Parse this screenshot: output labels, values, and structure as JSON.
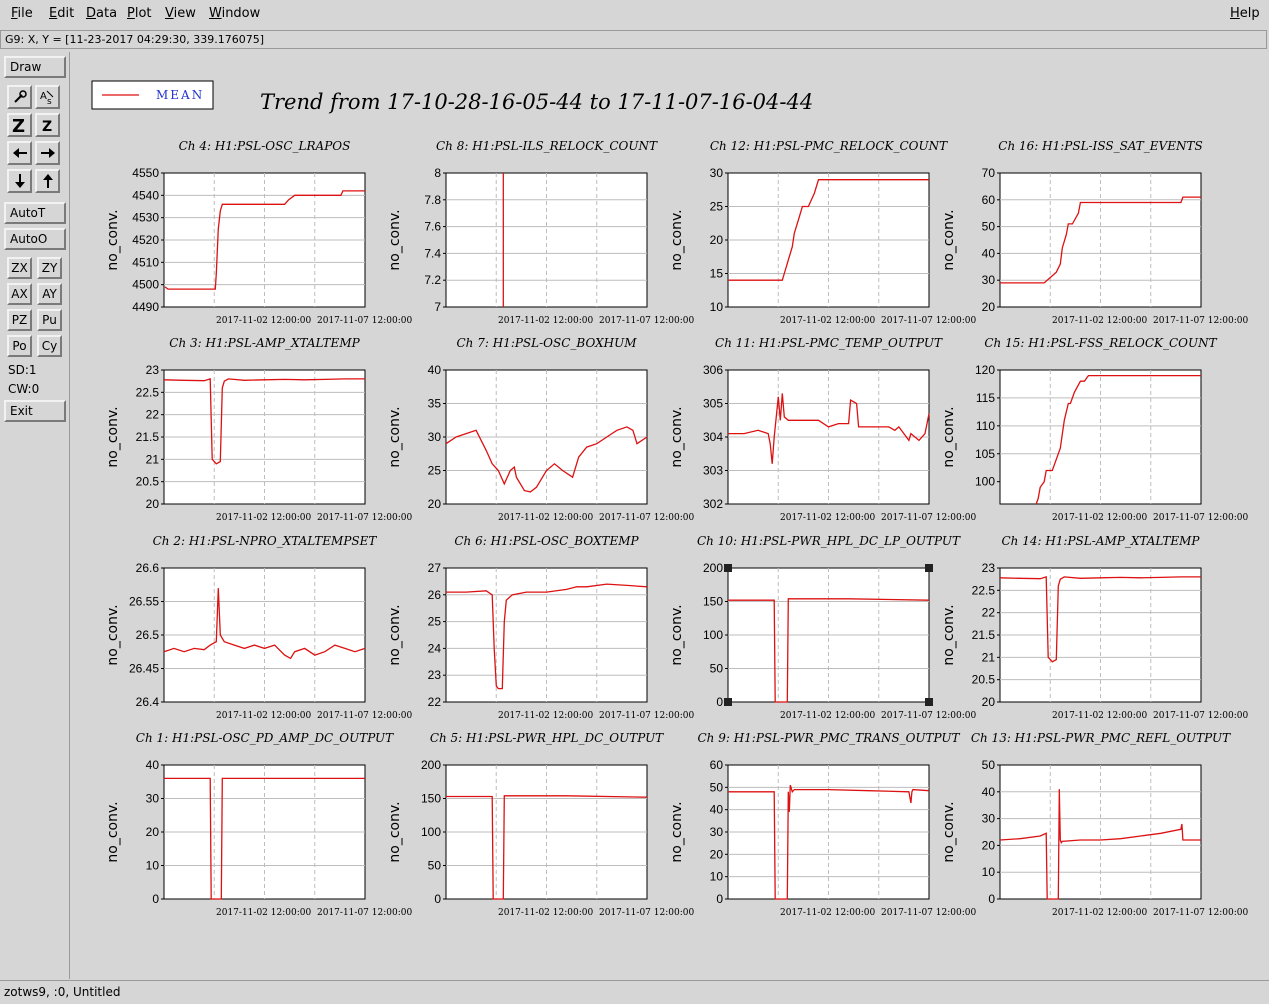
{
  "menubar": {
    "items": [
      {
        "first": "F",
        "rest": "ile"
      },
      {
        "first": "E",
        "rest": "dit"
      },
      {
        "first": "D",
        "rest": "ata"
      },
      {
        "first": "P",
        "rest": "lot"
      },
      {
        "first": "V",
        "rest": "iew"
      },
      {
        "first": "W",
        "rest": "indow"
      }
    ],
    "help": {
      "first": "H",
      "rest": "elp"
    }
  },
  "coordinate_readout": "G9: X, Y = [11-23-2017 04:29:30, 339.176075]",
  "toolbar": {
    "draw": "Draw",
    "icons": [
      "wrench-icon",
      "text-size-icon",
      "zoom-z-icon",
      "zoom-z-small-icon",
      "arrow-left-icon",
      "arrow-right-icon",
      "arrow-down-icon",
      "arrow-up-icon"
    ],
    "autot": "AutoT",
    "autoo": "AutoO",
    "pairs": [
      [
        "ZX",
        "ZY"
      ],
      [
        "AX",
        "AY"
      ],
      [
        "PZ",
        "Pu"
      ],
      [
        "Po",
        "Cy"
      ]
    ],
    "sd": "SD:1",
    "cw": "CW:0",
    "exit": "Exit"
  },
  "status": "zotws9, :0, Untitled",
  "legend": {
    "label": "MEAN",
    "color": "#dd1111"
  },
  "main_title": "Trend from 17-10-28-16-05-44 to 17-11-07-16-04-44",
  "colors": {
    "trace": "#dd1111",
    "grid": "#bdbdbd",
    "plot_bg": "#ffffff"
  },
  "chart_data": [
    {
      "type": "line",
      "title": "Ch 4: H1:PSL-OSC_LRAPOS",
      "ylabel": "no_conv.",
      "yticks": [
        "4490",
        "4500",
        "4510",
        "4520",
        "4530",
        "4540",
        "4550"
      ],
      "ylim": [
        4490,
        4550
      ],
      "xticks": [
        "2017-11-02 12:00:00",
        "2017-11-07 12:00:00"
      ],
      "xlim": [
        0,
        10
      ],
      "series": [
        {
          "x": [
            0.05,
            0.2,
            0.4,
            0.6,
            2.55,
            2.6,
            2.7,
            2.8,
            2.9,
            3.0,
            4.0,
            5.0,
            6.0,
            6.2,
            6.5,
            7.5,
            8.8,
            8.9,
            10
          ],
          "y": [
            4499,
            4498,
            4498,
            4498,
            4498,
            4505,
            4525,
            4533,
            4536,
            4536,
            4536,
            4536,
            4536,
            4538,
            4540,
            4540,
            4540,
            4542,
            4542
          ]
        }
      ]
    },
    {
      "type": "line",
      "title": "Ch 8: H1:PSL-ILS_RELOCK_COUNT",
      "ylabel": "no_conv.",
      "yticks": [
        "7",
        "7.2",
        "7.4",
        "7.6",
        "7.8",
        "8"
      ],
      "ylim": [
        7,
        8
      ],
      "xticks": [
        "2017-11-02 12:00:00",
        "2017-11-07 12:00:00"
      ],
      "xlim": [
        0,
        10
      ],
      "series": [
        {
          "x": [
            2.85,
            2.85
          ],
          "y": [
            7,
            8
          ]
        }
      ]
    },
    {
      "type": "line",
      "title": "Ch 12: H1:PSL-PMC_RELOCK_COUNT",
      "ylabel": "no_conv.",
      "yticks": [
        "10",
        "15",
        "20",
        "25",
        "30"
      ],
      "ylim": [
        10,
        30
      ],
      "xticks": [
        "2017-11-02 12:00:00",
        "2017-11-07 12:00:00"
      ],
      "xlim": [
        0,
        10
      ],
      "series": [
        {
          "x": [
            0,
            2.7,
            2.8,
            3.0,
            3.2,
            3.3,
            3.5,
            3.7,
            4.0,
            4.3,
            4.5,
            5.0,
            10
          ],
          "y": [
            14,
            14,
            15,
            17,
            19,
            21,
            23,
            25,
            25,
            27,
            29,
            29,
            29
          ]
        }
      ]
    },
    {
      "type": "line",
      "title": "Ch 16: H1:PSL-ISS_SAT_EVENTS",
      "ylabel": "no_conv.",
      "yticks": [
        "20",
        "30",
        "40",
        "50",
        "60",
        "70"
      ],
      "ylim": [
        20,
        70
      ],
      "xticks": [
        "2017-11-02 12:00:00",
        "2017-11-07 12:00:00"
      ],
      "xlim": [
        0,
        10
      ],
      "series": [
        {
          "x": [
            0,
            2.2,
            2.5,
            2.8,
            3.0,
            3.1,
            3.3,
            3.4,
            3.6,
            3.9,
            4.0,
            4.2,
            9.0,
            9.1,
            10
          ],
          "y": [
            29,
            29,
            31,
            33,
            36,
            42,
            47,
            51,
            51,
            55,
            59,
            59,
            59,
            61,
            61
          ]
        }
      ]
    },
    {
      "type": "line",
      "title": "Ch 3: H1:PSL-AMP_XTALTEMP",
      "ylabel": "no_conv.",
      "yticks": [
        "20",
        "20.5",
        "21",
        "21.5",
        "22",
        "22.5",
        "23"
      ],
      "ylim": [
        20,
        23
      ],
      "xticks": [
        "2017-11-02 12:00:00",
        "2017-11-07 12:00:00"
      ],
      "xlim": [
        0,
        10
      ],
      "series": [
        {
          "x": [
            0,
            1.0,
            2.0,
            2.3,
            2.4,
            2.5,
            2.6,
            2.8,
            2.9,
            3.0,
            3.2,
            4.0,
            5.0,
            6.0,
            7.0,
            8.0,
            9.0,
            10.0
          ],
          "y": [
            22.78,
            22.77,
            22.76,
            22.8,
            21.0,
            20.95,
            20.9,
            20.95,
            22.6,
            22.75,
            22.8,
            22.77,
            22.78,
            22.79,
            22.78,
            22.79,
            22.8,
            22.8
          ]
        }
      ]
    },
    {
      "type": "line",
      "title": "Ch 7: H1:PSL-OSC_BOXHUM",
      "ylabel": "no_conv.",
      "yticks": [
        "20",
        "25",
        "30",
        "35",
        "40"
      ],
      "ylim": [
        20,
        40
      ],
      "xticks": [
        "2017-11-02 12:00:00",
        "2017-11-07 12:00:00"
      ],
      "xlim": [
        0,
        10
      ],
      "series": [
        {
          "x": [
            0,
            0.5,
            1.0,
            1.5,
            2.0,
            2.3,
            2.6,
            2.9,
            3.2,
            3.4,
            3.5,
            3.9,
            4.2,
            4.5,
            5.0,
            5.4,
            5.8,
            6.3,
            6.6,
            7.0,
            7.5,
            8.0,
            8.5,
            9.0,
            9.3,
            9.5,
            10
          ],
          "y": [
            29,
            30,
            30.5,
            31,
            28,
            26,
            25,
            23,
            25,
            25.5,
            24,
            22,
            21.8,
            22.5,
            25,
            26,
            25,
            24,
            27,
            28.5,
            29,
            30,
            31,
            31.5,
            31,
            29,
            30
          ]
        }
      ]
    },
    {
      "type": "line",
      "title": "Ch 11: H1:PSL-PMC_TEMP_OUTPUT",
      "ylabel": "no_conv.",
      "yticks": [
        "302",
        "303",
        "304",
        "305",
        "306"
      ],
      "ylim": [
        302,
        306
      ],
      "xticks": [
        "2017-11-02 12:00:00",
        "2017-11-07 12:00:00"
      ],
      "xlim": [
        0,
        10
      ],
      "series": [
        {
          "x": [
            0,
            0.8,
            1.5,
            2.0,
            2.1,
            2.2,
            2.3,
            2.5,
            2.6,
            2.7,
            2.8,
            3.0,
            3.5,
            4.0,
            4.5,
            5.0,
            5.5,
            6.0,
            6.1,
            6.4,
            6.5,
            7.0,
            8.0,
            8.3,
            8.5,
            9.0,
            9.1,
            9.3,
            9.5,
            9.8,
            10
          ],
          "y": [
            304.1,
            304.1,
            304.2,
            304.1,
            303.8,
            303.2,
            304.0,
            305.2,
            304.5,
            305.3,
            304.6,
            304.5,
            304.5,
            304.5,
            304.5,
            304.3,
            304.4,
            304.4,
            305.1,
            305.0,
            304.3,
            304.3,
            304.3,
            304.2,
            304.3,
            303.9,
            304.1,
            304.0,
            303.9,
            304.1,
            304.7
          ]
        }
      ]
    },
    {
      "type": "line",
      "title": "Ch 15: H1:PSL-FSS_RELOCK_COUNT",
      "ylabel": "no_conv.",
      "yticks": [
        "100",
        "105",
        "110",
        "115",
        "120"
      ],
      "ylim": [
        96,
        120
      ],
      "xticks": [
        "2017-11-02 12:00:00",
        "2017-11-07 12:00:00"
      ],
      "xlim": [
        0,
        10
      ],
      "series": [
        {
          "x": [
            1.8,
            1.9,
            2.0,
            2.2,
            2.3,
            2.6,
            2.8,
            3.0,
            3.2,
            3.4,
            3.5,
            3.7,
            4.0,
            4.2,
            4.4,
            4.6,
            10
          ],
          "y": [
            96,
            97,
            99,
            100,
            102,
            102,
            104,
            106,
            111,
            114,
            114,
            116,
            118,
            118,
            119,
            119,
            119
          ]
        }
      ]
    },
    {
      "type": "line",
      "title": "Ch 2: H1:PSL-NPRO_XTALTEMPSET",
      "ylabel": "no_conv.",
      "yticks": [
        "26.4",
        "26.45",
        "26.5",
        "26.55",
        "26.6"
      ],
      "ylim": [
        26.4,
        26.6
      ],
      "xticks": [
        "2017-11-02 12:00:00",
        "2017-11-07 12:00:00"
      ],
      "xlim": [
        0,
        10
      ],
      "series": [
        {
          "x": [
            0,
            0.5,
            1.0,
            1.5,
            2.0,
            2.3,
            2.6,
            2.7,
            2.8,
            3.0,
            3.5,
            4.0,
            4.5,
            5.0,
            5.5,
            6.0,
            6.3,
            6.5,
            7.0,
            7.5,
            8.0,
            8.5,
            9.0,
            9.5,
            10
          ],
          "y": [
            26.475,
            26.48,
            26.475,
            26.48,
            26.478,
            26.485,
            26.49,
            26.57,
            26.5,
            26.49,
            26.485,
            26.48,
            26.485,
            26.48,
            26.485,
            26.47,
            26.465,
            26.475,
            26.48,
            26.47,
            26.475,
            26.485,
            26.48,
            26.475,
            26.48
          ]
        }
      ]
    },
    {
      "type": "line",
      "title": "Ch 6: H1:PSL-OSC_BOXTEMP",
      "ylabel": "no_conv.",
      "yticks": [
        "22",
        "23",
        "24",
        "25",
        "26",
        "27"
      ],
      "ylim": [
        22,
        27
      ],
      "xticks": [
        "2017-11-02 12:00:00",
        "2017-11-07 12:00:00"
      ],
      "xlim": [
        0,
        10
      ],
      "series": [
        {
          "x": [
            0,
            1.0,
            2.0,
            2.3,
            2.4,
            2.5,
            2.6,
            2.8,
            2.9,
            3.0,
            3.3,
            4.0,
            5.0,
            6.0,
            6.5,
            7.0,
            8.0,
            9.0,
            10
          ],
          "y": [
            26.1,
            26.1,
            26.15,
            26.0,
            24.0,
            22.6,
            22.5,
            22.5,
            25.0,
            25.8,
            26.0,
            26.1,
            26.1,
            26.2,
            26.3,
            26.3,
            26.4,
            26.35,
            26.3
          ]
        }
      ]
    },
    {
      "type": "line",
      "title": "Ch 10: H1:PSL-PWR_HPL_DC_LP_OUTPUT",
      "ylabel": "no_conv.",
      "yticks": [
        "0",
        "50",
        "100",
        "150",
        "200"
      ],
      "ylim": [
        0,
        200
      ],
      "xticks": [
        "2017-11-02 12:00:00",
        "2017-11-07 12:00:00"
      ],
      "xlim": [
        0,
        10
      ],
      "series": [
        {
          "x": [
            0,
            2.3,
            2.35,
            2.4,
            2.9,
            2.95,
            3.0,
            6.0,
            10
          ],
          "y": [
            152,
            152,
            0,
            0,
            0,
            0,
            154,
            154,
            152
          ]
        }
      ]
    },
    {
      "type": "line",
      "title": "Ch 14: H1:PSL-AMP_XTALTEMP",
      "ylabel": "no_conv.",
      "yticks": [
        "20",
        "20.5",
        "21",
        "21.5",
        "22",
        "22.5",
        "23"
      ],
      "ylim": [
        20,
        23
      ],
      "xticks": [
        "2017-11-02 12:00:00",
        "2017-11-07 12:00:00"
      ],
      "xlim": [
        0,
        10
      ],
      "series": [
        {
          "x": [
            0,
            1.0,
            2.0,
            2.3,
            2.4,
            2.5,
            2.6,
            2.8,
            2.9,
            3.0,
            3.2,
            4.0,
            5.0,
            6.0,
            7.0,
            8.0,
            9.0,
            10.0
          ],
          "y": [
            22.78,
            22.77,
            22.76,
            22.8,
            21.0,
            20.95,
            20.9,
            20.95,
            22.6,
            22.75,
            22.8,
            22.77,
            22.78,
            22.79,
            22.78,
            22.79,
            22.8,
            22.8
          ]
        }
      ]
    },
    {
      "type": "line",
      "title": "Ch 1: H1:PSL-OSC_PD_AMP_DC_OUTPUT",
      "ylabel": "no_conv.",
      "yticks": [
        "0",
        "10",
        "20",
        "30",
        "40"
      ],
      "ylim": [
        0,
        40
      ],
      "xticks": [
        "2017-11-02 12:00:00",
        "2017-11-07 12:00:00"
      ],
      "xlim": [
        0,
        10
      ],
      "series": [
        {
          "x": [
            0,
            2.3,
            2.35,
            2.4,
            2.8,
            2.85,
            2.9,
            6.0,
            10
          ],
          "y": [
            36,
            36,
            0,
            0,
            0,
            0,
            36,
            36,
            36
          ]
        }
      ]
    },
    {
      "type": "line",
      "title": "Ch 5: H1:PSL-PWR_HPL_DC_OUTPUT",
      "ylabel": "no_conv.",
      "yticks": [
        "0",
        "50",
        "100",
        "150",
        "200"
      ],
      "ylim": [
        0,
        200
      ],
      "xticks": [
        "2017-11-02 12:00:00",
        "2017-11-07 12:00:00"
      ],
      "xlim": [
        0,
        10
      ],
      "series": [
        {
          "x": [
            0,
            2.3,
            2.35,
            2.4,
            2.8,
            2.85,
            2.9,
            6.0,
            10
          ],
          "y": [
            153,
            153,
            0,
            0,
            0,
            0,
            154,
            154,
            152
          ]
        }
      ]
    },
    {
      "type": "line",
      "title": "Ch 9: H1:PSL-PWR_PMC_TRANS_OUTPUT",
      "ylabel": "no_conv.",
      "yticks": [
        "0",
        "10",
        "20",
        "30",
        "40",
        "50",
        "60"
      ],
      "ylim": [
        0,
        60
      ],
      "xticks": [
        "2017-11-02 12:00:00",
        "2017-11-07 12:00:00"
      ],
      "xlim": [
        0,
        10
      ],
      "series": [
        {
          "x": [
            0,
            2.3,
            2.35,
            2.4,
            2.9,
            2.95,
            3.0,
            3.05,
            3.1,
            3.2,
            3.3,
            5.0,
            7.0,
            9.0,
            9.1,
            9.15,
            9.2,
            10
          ],
          "y": [
            48,
            48,
            0,
            0,
            0,
            0,
            48,
            39,
            51,
            48,
            49,
            49,
            48.5,
            48,
            43,
            48,
            49,
            48.5
          ]
        }
      ]
    },
    {
      "type": "line",
      "title": "Ch 13: H1:PSL-PWR_PMC_REFL_OUTPUT",
      "ylabel": "no_conv.",
      "yticks": [
        "0",
        "10",
        "20",
        "30",
        "40",
        "50"
      ],
      "ylim": [
        0,
        50
      ],
      "xticks": [
        "2017-11-02 12:00:00",
        "2017-11-07 12:00:00"
      ],
      "xlim": [
        0,
        10
      ],
      "series": [
        {
          "x": [
            0,
            1.0,
            2.0,
            2.3,
            2.35,
            2.4,
            2.9,
            2.95,
            3.0,
            3.05,
            3.1,
            4.0,
            5.0,
            6.0,
            7.0,
            8.0,
            9.0,
            9.05,
            9.1,
            9.2,
            10
          ],
          "y": [
            22,
            22.5,
            23.5,
            24.5,
            0,
            0,
            0,
            41,
            22,
            21,
            21.5,
            22,
            22,
            22.5,
            23.5,
            24.5,
            26,
            28,
            22,
            22,
            22
          ]
        }
      ]
    }
  ]
}
